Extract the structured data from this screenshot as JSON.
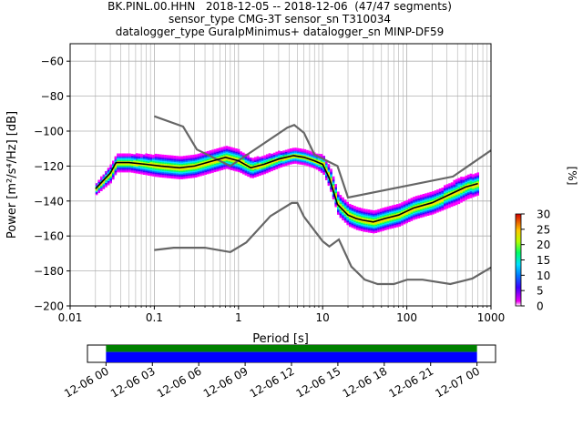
{
  "title": {
    "line1": "BK.PINL.00.HHN   2018-12-05 -- 2018-12-06  (47/47 segments)",
    "line2": "sensor_type CMG-3T sensor_sn T310034",
    "line3": "datalogger_type GuralpMinimus+ datalogger_sn MINP-DF59"
  },
  "colors": {
    "nlnm_nhnm": "#666666",
    "mode_line": "#000000",
    "data_available": "#0000ff",
    "gaps_ok": "#008000",
    "grid": "#b0b0b0"
  },
  "chart_data": [
    {
      "type": "heatmap",
      "xlabel": "Period [s]",
      "ylabel": "Power [m²/s⁴/Hz] [dB]",
      "xscale": "log",
      "xlim": [
        0.01,
        1000
      ],
      "ylim": [
        -200,
        -50
      ],
      "xtick_labels": [
        "0.01",
        "0.1",
        "1",
        "10",
        "100",
        "1000"
      ],
      "ytick_values": [
        -200,
        -180,
        -160,
        -140,
        -120,
        -100,
        -80,
        -60
      ],
      "grid": "on (x major + minor, y major)",
      "colorbar": {
        "label": "[%]",
        "range": [
          0,
          30
        ],
        "ticks": [
          0,
          5,
          10,
          15,
          20,
          25,
          30
        ],
        "colormap": "pqlx (white, magenta, blue, cyan, green, yellow, orange, red)"
      },
      "nhnm": {
        "x": [
          0.1,
          0.22,
          0.32,
          0.8,
          3.8,
          4.6,
          6,
          8,
          15,
          20,
          354,
          1000
        ],
        "y": [
          -91.5,
          -97.4,
          -110.5,
          -120,
          -98,
          -96.5,
          -101,
          -113.5,
          -120,
          -138,
          -126,
          -111
        ]
      },
      "nlnm": {
        "x": [
          0.1,
          0.17,
          0.4,
          0.8,
          1.24,
          2.4,
          4.3,
          5,
          6,
          10,
          12,
          15.6,
          21.9,
          31.6,
          45,
          70,
          101,
          154,
          328,
          600,
          1000
        ],
        "y": [
          -168,
          -166.7,
          -166.7,
          -169.2,
          -163.7,
          -148.6,
          -141.1,
          -141.1,
          -149,
          -163,
          -166,
          -162,
          -177.5,
          -185,
          -187.5,
          -187.5,
          -185,
          -185,
          -187.5,
          -184.4,
          -178
        ]
      },
      "mode": {
        "x": [
          0.02,
          0.025,
          0.03,
          0.035,
          0.05,
          0.08,
          0.12,
          0.2,
          0.3,
          0.5,
          0.7,
          1.0,
          1.4,
          2.0,
          3.0,
          4.5,
          6,
          8,
          10,
          12,
          15,
          20,
          25,
          30,
          40,
          55,
          80,
          120,
          200,
          300,
          500,
          700
        ],
        "y": [
          -133,
          -128,
          -124,
          -118,
          -118,
          -119,
          -120,
          -121,
          -120,
          -117,
          -115,
          -117,
          -121,
          -119,
          -116,
          -114,
          -115,
          -117,
          -119,
          -127,
          -142,
          -148,
          -150,
          -151,
          -152,
          -150,
          -148,
          -144,
          -141,
          -137,
          -132,
          -130
        ]
      },
      "spread": {
        "x": [
          0.02,
          0.03,
          0.05,
          0.1,
          0.2,
          0.5,
          1,
          2,
          4,
          8,
          12,
          20,
          30,
          50,
          100,
          200,
          400,
          700
        ],
        "halfwidth": [
          3,
          5,
          5,
          6,
          6,
          6,
          6,
          5,
          4,
          4,
          6,
          6,
          6,
          6,
          6,
          6,
          7,
          6
        ]
      }
    },
    {
      "type": "timeline",
      "xtick_labels": [
        "12-06 00",
        "12-06 03",
        "12-06 06",
        "12-06 09",
        "12-06 12",
        "12-06 15",
        "12-06 18",
        "12-06 21",
        "12-07 00"
      ],
      "xlim_hours": [
        -1.2,
        25.2
      ],
      "coverage_hours": [
        0,
        24
      ]
    }
  ]
}
